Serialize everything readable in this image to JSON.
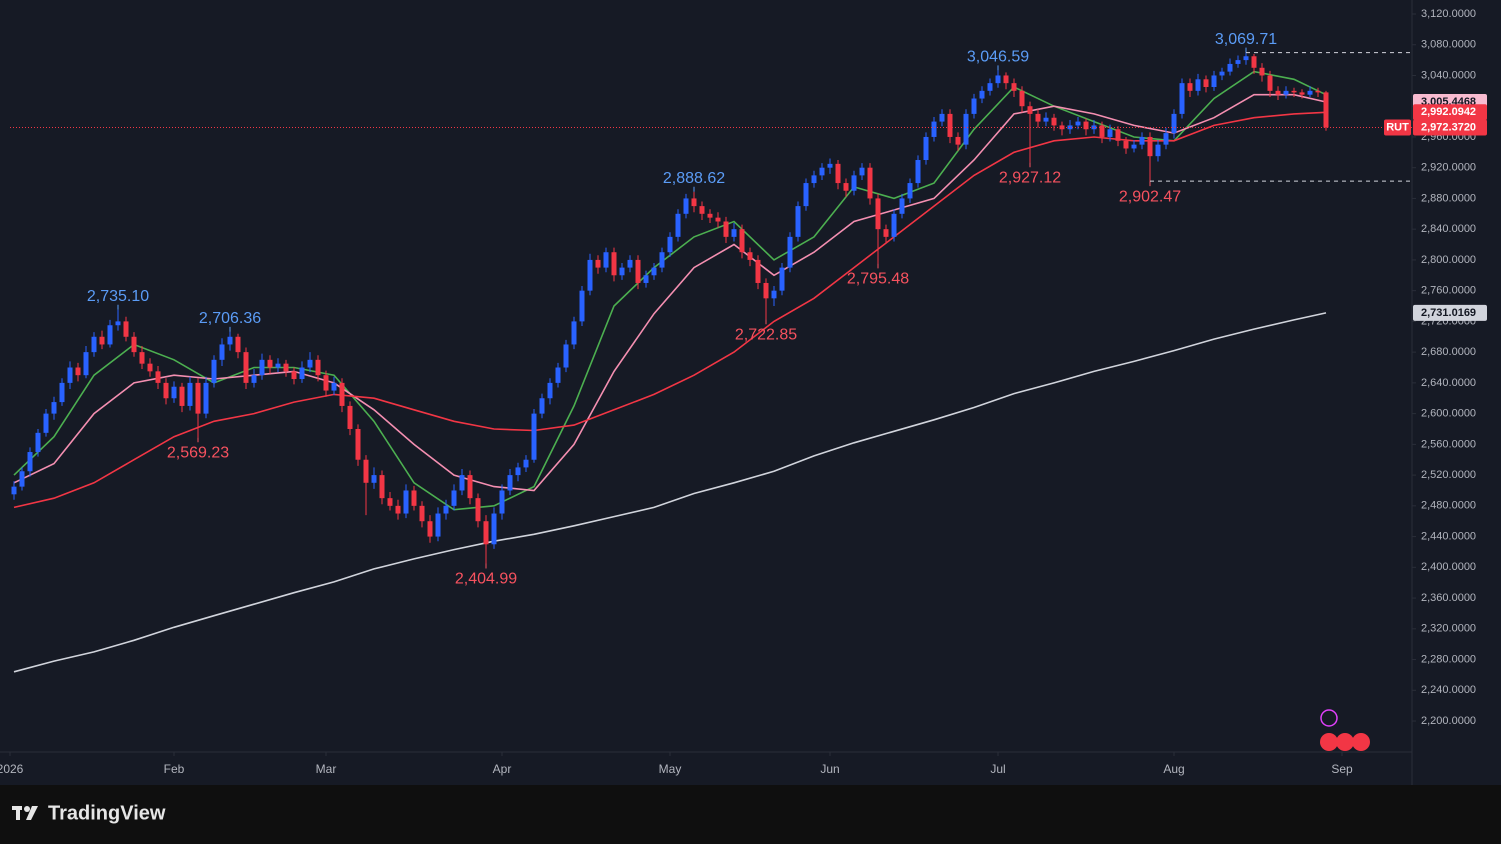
{
  "chart_data": {
    "type": "candlestick",
    "symbol": "RUT",
    "ylim": [
      2159.7,
      3138.2
    ],
    "yticks": [
      {
        "value": 2200,
        "label": "2,200.0000"
      },
      {
        "value": 2240,
        "label": "2,240.0000"
      },
      {
        "value": 2280,
        "label": "2,280.0000"
      },
      {
        "value": 2320,
        "label": "2,320.0000"
      },
      {
        "value": 2360,
        "label": "2,360.0000"
      },
      {
        "value": 2400,
        "label": "2,400.0000"
      },
      {
        "value": 2440,
        "label": "2,440.0000"
      },
      {
        "value": 2480,
        "label": "2,480.0000"
      },
      {
        "value": 2520,
        "label": "2,520.0000"
      },
      {
        "value": 2560,
        "label": "2,560.0000"
      },
      {
        "value": 2600,
        "label": "2,600.0000"
      },
      {
        "value": 2640,
        "label": "2,640.0000"
      },
      {
        "value": 2680,
        "label": "2,680.0000"
      },
      {
        "value": 2720,
        "label": "2,720.0000"
      },
      {
        "value": 2760,
        "label": "2,760.0000"
      },
      {
        "value": 2800,
        "label": "2,800.0000"
      },
      {
        "value": 2840,
        "label": "2,840.0000"
      },
      {
        "value": 2880,
        "label": "2,880.0000"
      },
      {
        "value": 2920,
        "label": "2,920.0000"
      },
      {
        "value": 2960,
        "label": "2,960.0000"
      },
      {
        "value": 3000,
        "label": "3,000.0000"
      },
      {
        "value": 3040,
        "label": "3,040.0000"
      },
      {
        "value": 3080,
        "label": "3,080.0000"
      },
      {
        "value": 3120,
        "label": "3,120.0000"
      }
    ],
    "xlim": [
      -0.5,
      174.75
    ],
    "xticks": [
      {
        "value": -0.5,
        "label": "2026"
      },
      {
        "value": 20,
        "label": "Feb"
      },
      {
        "value": 39,
        "label": "Mar"
      },
      {
        "value": 61,
        "label": "Apr"
      },
      {
        "value": 82,
        "label": "May"
      },
      {
        "value": 102,
        "label": "Jun"
      },
      {
        "value": 123,
        "label": "Jul"
      },
      {
        "value": 145,
        "label": "Aug"
      },
      {
        "value": 166,
        "label": "Sep"
      }
    ],
    "up_color": "#2962ff",
    "down_color": "#f23645",
    "ohlc": [
      [
        2495,
        2512,
        2488,
        2505
      ],
      [
        2505,
        2530,
        2500,
        2525
      ],
      [
        2525,
        2556,
        2518,
        2550
      ],
      [
        2550,
        2580,
        2544,
        2575
      ],
      [
        2575,
        2606,
        2570,
        2600
      ],
      [
        2600,
        2622,
        2592,
        2615
      ],
      [
        2615,
        2646,
        2610,
        2640
      ],
      [
        2640,
        2668,
        2632,
        2660
      ],
      [
        2660,
        2666,
        2642,
        2650
      ],
      [
        2650,
        2688,
        2646,
        2680
      ],
      [
        2680,
        2706,
        2674,
        2700
      ],
      [
        2700,
        2708,
        2684,
        2690
      ],
      [
        2690,
        2722,
        2686,
        2715
      ],
      [
        2715,
        2735.1,
        2708,
        2720
      ],
      [
        2720,
        2726,
        2694,
        2700
      ],
      [
        2700,
        2706,
        2674,
        2680
      ],
      [
        2680,
        2688,
        2658,
        2665
      ],
      [
        2665,
        2672,
        2648,
        2655
      ],
      [
        2655,
        2662,
        2632,
        2640
      ],
      [
        2640,
        2646,
        2612,
        2620
      ],
      [
        2620,
        2642,
        2614,
        2635
      ],
      [
        2635,
        2640,
        2602,
        2610
      ],
      [
        2610,
        2648,
        2604,
        2640
      ],
      [
        2640,
        2646,
        2569.23,
        2600
      ],
      [
        2600,
        2648,
        2594,
        2640
      ],
      [
        2640,
        2676,
        2634,
        2670
      ],
      [
        2670,
        2698,
        2662,
        2690
      ],
      [
        2690,
        2706.36,
        2682,
        2700
      ],
      [
        2700,
        2704,
        2672,
        2680
      ],
      [
        2680,
        2686,
        2632,
        2640
      ],
      [
        2640,
        2658,
        2634,
        2650
      ],
      [
        2650,
        2678,
        2644,
        2670
      ],
      [
        2670,
        2676,
        2652,
        2660
      ],
      [
        2660,
        2672,
        2654,
        2665
      ],
      [
        2665,
        2670,
        2648,
        2655
      ],
      [
        2655,
        2660,
        2638,
        2645
      ],
      [
        2645,
        2668,
        2640,
        2660
      ],
      [
        2660,
        2680,
        2654,
        2670
      ],
      [
        2670,
        2676,
        2642,
        2650
      ],
      [
        2650,
        2656,
        2622,
        2630
      ],
      [
        2630,
        2648,
        2624,
        2640
      ],
      [
        2640,
        2646,
        2602,
        2610
      ],
      [
        2610,
        2616,
        2572,
        2580
      ],
      [
        2580,
        2586,
        2532,
        2540
      ],
      [
        2540,
        2546,
        2468,
        2510
      ],
      [
        2510,
        2530,
        2502,
        2520
      ],
      [
        2520,
        2526,
        2482,
        2490
      ],
      [
        2490,
        2498,
        2474,
        2480
      ],
      [
        2480,
        2488,
        2462,
        2470
      ],
      [
        2470,
        2508,
        2464,
        2500
      ],
      [
        2500,
        2506,
        2474,
        2480
      ],
      [
        2480,
        2486,
        2452,
        2460
      ],
      [
        2460,
        2468,
        2432,
        2440
      ],
      [
        2440,
        2478,
        2434,
        2470
      ],
      [
        2470,
        2488,
        2462,
        2480
      ],
      [
        2480,
        2508,
        2474,
        2500
      ],
      [
        2500,
        2528,
        2494,
        2520
      ],
      [
        2520,
        2526,
        2482,
        2490
      ],
      [
        2490,
        2496,
        2452,
        2460
      ],
      [
        2460,
        2468,
        2404.99,
        2430
      ],
      [
        2430,
        2478,
        2424,
        2470
      ],
      [
        2470,
        2508,
        2462,
        2500
      ],
      [
        2500,
        2528,
        2494,
        2520
      ],
      [
        2520,
        2536,
        2512,
        2530
      ],
      [
        2530,
        2546,
        2524,
        2540
      ],
      [
        2540,
        2606,
        2536,
        2600
      ],
      [
        2600,
        2626,
        2594,
        2620
      ],
      [
        2620,
        2646,
        2612,
        2640
      ],
      [
        2640,
        2666,
        2634,
        2660
      ],
      [
        2660,
        2696,
        2654,
        2690
      ],
      [
        2690,
        2726,
        2684,
        2720
      ],
      [
        2720,
        2766,
        2714,
        2760
      ],
      [
        2760,
        2808,
        2754,
        2800
      ],
      [
        2800,
        2806,
        2782,
        2790
      ],
      [
        2790,
        2816,
        2784,
        2810
      ],
      [
        2810,
        2816,
        2772,
        2780
      ],
      [
        2780,
        2796,
        2774,
        2790
      ],
      [
        2790,
        2806,
        2784,
        2800
      ],
      [
        2800,
        2806,
        2762,
        2770
      ],
      [
        2770,
        2786,
        2764,
        2780
      ],
      [
        2780,
        2796,
        2774,
        2790
      ],
      [
        2790,
        2816,
        2784,
        2810
      ],
      [
        2810,
        2836,
        2804,
        2830
      ],
      [
        2830,
        2866,
        2824,
        2860
      ],
      [
        2860,
        2886,
        2854,
        2880
      ],
      [
        2880,
        2888.62,
        2862,
        2870
      ],
      [
        2870,
        2876,
        2852,
        2860
      ],
      [
        2860,
        2866,
        2848,
        2855
      ],
      [
        2855,
        2862,
        2842,
        2850
      ],
      [
        2850,
        2856,
        2822,
        2830
      ],
      [
        2830,
        2848,
        2824,
        2840
      ],
      [
        2840,
        2846,
        2802,
        2810
      ],
      [
        2810,
        2816,
        2792,
        2800
      ],
      [
        2800,
        2806,
        2762,
        2770
      ],
      [
        2770,
        2776,
        2722.85,
        2750
      ],
      [
        2750,
        2766,
        2740,
        2760
      ],
      [
        2760,
        2796,
        2754,
        2790
      ],
      [
        2790,
        2836,
        2784,
        2830
      ],
      [
        2830,
        2876,
        2824,
        2870
      ],
      [
        2870,
        2906,
        2864,
        2900
      ],
      [
        2900,
        2916,
        2894,
        2910
      ],
      [
        2910,
        2926,
        2904,
        2920
      ],
      [
        2920,
        2932,
        2912,
        2925
      ],
      [
        2925,
        2930,
        2892,
        2900
      ],
      [
        2900,
        2906,
        2882,
        2890
      ],
      [
        2890,
        2916,
        2884,
        2910
      ],
      [
        2910,
        2926,
        2904,
        2920
      ],
      [
        2920,
        2926,
        2872,
        2880
      ],
      [
        2880,
        2886,
        2795.48,
        2840
      ],
      [
        2840,
        2846,
        2822,
        2830
      ],
      [
        2830,
        2866,
        2824,
        2860
      ],
      [
        2860,
        2886,
        2854,
        2880
      ],
      [
        2880,
        2906,
        2874,
        2900
      ],
      [
        2900,
        2936,
        2894,
        2930
      ],
      [
        2930,
        2966,
        2924,
        2960
      ],
      [
        2960,
        2986,
        2954,
        2980
      ],
      [
        2980,
        2996,
        2974,
        2990
      ],
      [
        2990,
        2996,
        2952,
        2960
      ],
      [
        2960,
        2966,
        2942,
        2950
      ],
      [
        2950,
        2996,
        2944,
        2990
      ],
      [
        2990,
        3016,
        2984,
        3010
      ],
      [
        3010,
        3026,
        3004,
        3020
      ],
      [
        3020,
        3036,
        3014,
        3030
      ],
      [
        3030,
        3046.59,
        3024,
        3040
      ],
      [
        3040,
        3044,
        3022,
        3030
      ],
      [
        3030,
        3036,
        3012,
        3020
      ],
      [
        3020,
        3026,
        2992,
        3000
      ],
      [
        3000,
        3006,
        2927.12,
        2990
      ],
      [
        2990,
        2996,
        2972,
        2980
      ],
      [
        2980,
        2992,
        2974,
        2985
      ],
      [
        2985,
        2990,
        2968,
        2975
      ],
      [
        2975,
        2980,
        2962,
        2970
      ],
      [
        2970,
        2982,
        2964,
        2975
      ],
      [
        2975,
        2986,
        2970,
        2980
      ],
      [
        2980,
        2984,
        2962,
        2970
      ],
      [
        2970,
        2982,
        2964,
        2975
      ],
      [
        2975,
        2980,
        2952,
        2960
      ],
      [
        2960,
        2976,
        2954,
        2970
      ],
      [
        2970,
        2974,
        2948,
        2955
      ],
      [
        2955,
        2960,
        2938,
        2945
      ],
      [
        2945,
        2956,
        2940,
        2950
      ],
      [
        2950,
        2966,
        2944,
        2960
      ],
      [
        2960,
        2966,
        2902.47,
        2935
      ],
      [
        2935,
        2956,
        2928,
        2950
      ],
      [
        2950,
        2972,
        2944,
        2965
      ],
      [
        2965,
        2996,
        2958,
        2990
      ],
      [
        2990,
        3036,
        2984,
        3030
      ],
      [
        3030,
        3036,
        3012,
        3020
      ],
      [
        3020,
        3042,
        3014,
        3035
      ],
      [
        3035,
        3040,
        3018,
        3025
      ],
      [
        3025,
        3046,
        3020,
        3040
      ],
      [
        3040,
        3050,
        3034,
        3045
      ],
      [
        3045,
        3062,
        3040,
        3055
      ],
      [
        3055,
        3066,
        3050,
        3060
      ],
      [
        3060,
        3069.71,
        3054,
        3065
      ],
      [
        3065,
        3068,
        3042,
        3050
      ],
      [
        3050,
        3056,
        3032,
        3040
      ],
      [
        3040,
        3046,
        3012,
        3020
      ],
      [
        3020,
        3026,
        3008,
        3015
      ],
      [
        3015,
        3026,
        3010,
        3020
      ],
      [
        3020,
        3024,
        3012,
        3018
      ],
      [
        3018,
        3022,
        3010,
        3015
      ],
      [
        3015,
        3026,
        3012,
        3020
      ],
      [
        3020,
        3024,
        3012,
        3018
      ],
      [
        3018,
        3020,
        2968,
        2972.372
      ]
    ],
    "x": [
      0,
      5,
      10,
      15,
      20,
      25,
      30,
      35,
      40,
      45,
      50,
      55,
      60,
      65,
      70,
      75,
      80,
      85,
      90,
      95,
      100,
      105,
      110,
      115,
      120,
      125,
      130,
      135,
      140,
      145,
      150,
      155,
      160,
      164
    ],
    "series": [
      {
        "color": "#4caf50",
        "values": [
          2520,
          2570,
          2650,
          2690,
          2670,
          2640,
          2660,
          2660,
          2650,
          2590,
          2510,
          2475,
          2480,
          2505,
          2610,
          2740,
          2790,
          2830,
          2850,
          2800,
          2830,
          2895,
          2880,
          2900,
          2970,
          3025,
          3000,
          2980,
          2960,
          2955,
          3010,
          3045,
          3035,
          3015
        ]
      },
      {
        "color": "#f48fb1",
        "values": [
          2510,
          2535,
          2600,
          2640,
          2650,
          2645,
          2650,
          2655,
          2640,
          2605,
          2560,
          2520,
          2505,
          2500,
          2560,
          2655,
          2730,
          2790,
          2820,
          2780,
          2810,
          2850,
          2865,
          2880,
          2930,
          2990,
          3000,
          2990,
          2975,
          2965,
          2985,
          3015,
          3015,
          3005.4468
        ]
      },
      {
        "color": "#f23645",
        "values": [
          2478,
          2490,
          2510,
          2540,
          2570,
          2590,
          2600,
          2615,
          2625,
          2620,
          2605,
          2590,
          2580,
          2578,
          2585,
          2605,
          2625,
          2650,
          2680,
          2720,
          2750,
          2790,
          2830,
          2870,
          2910,
          2940,
          2955,
          2960,
          2955,
          2955,
          2975,
          2985,
          2990,
          2992.0942
        ]
      },
      {
        "color": "#d1d4dc",
        "values": [
          2264,
          2278,
          2290,
          2305,
          2322,
          2337,
          2352,
          2367,
          2381,
          2398,
          2411,
          2423,
          2434,
          2443,
          2454,
          2466,
          2478,
          2496,
          2510,
          2525,
          2545,
          2562,
          2577,
          2592,
          2608,
          2626,
          2640,
          2655,
          2668,
          2682,
          2697,
          2710,
          2722,
          2731.0169
        ]
      }
    ],
    "annotations": [
      {
        "index": 13,
        "value": 2735.1,
        "label": "2,735.10",
        "color": "#5b9cf6"
      },
      {
        "index": 27,
        "value": 2706.36,
        "label": "2,706.36",
        "color": "#5b9cf6"
      },
      {
        "index": 23,
        "value": 2569.23,
        "label": "2,569.23",
        "color": "#f7525f"
      },
      {
        "index": 59,
        "value": 2404.99,
        "label": "2,404.99",
        "color": "#f7525f"
      },
      {
        "index": 85,
        "value": 2888.62,
        "label": "2,888.62",
        "color": "#5b9cf6"
      },
      {
        "index": 94,
        "value": 2722.85,
        "label": "2,722.85",
        "color": "#f7525f"
      },
      {
        "index": 108,
        "value": 2795.48,
        "label": "2,795.48",
        "color": "#f7525f"
      },
      {
        "index": 123,
        "value": 3046.59,
        "label": "3,046.59",
        "color": "#5b9cf6"
      },
      {
        "index": 127,
        "value": 2927.12,
        "label": "2,927.12",
        "color": "#f7525f"
      },
      {
        "index": 142,
        "value": 2902.47,
        "label": "2,902.47",
        "color": "#f7525f"
      },
      {
        "index": 154,
        "value": 3069.71,
        "label": "3,069.71",
        "color": "#5b9cf6"
      }
    ],
    "price_labels": [
      {
        "value": 3005.4468,
        "label": "3,005.4468",
        "color": "#f8bbd0",
        "text_color": "#131722"
      },
      {
        "value": 2992.0942,
        "label": "2,992.0942",
        "color": "#f23645",
        "text_color": "#ffffff"
      },
      {
        "value": 2972.372,
        "label": "2,972.3720",
        "color": "#f23645",
        "text_color": "#ffffff"
      },
      {
        "value": 2731.0169,
        "label": "2,731.0169",
        "color": "#d1d4dc",
        "text_color": "#131722"
      }
    ]
  },
  "brand": "TradingView"
}
